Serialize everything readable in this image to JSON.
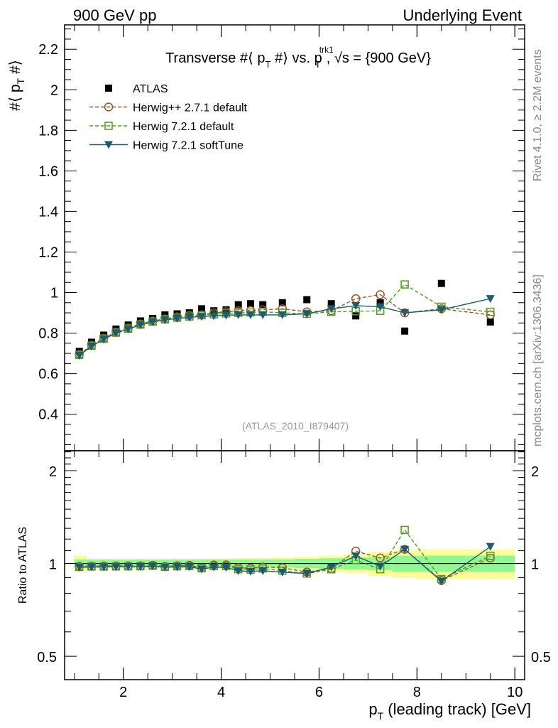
{
  "header": {
    "left": "900 GeV pp",
    "right": "Underlying Event"
  },
  "side": {
    "rivet": "Rivet 4.1.0, ≥ 2.2M events",
    "mcplots": "mcplots.cern.ch [arXiv:1306.3436]"
  },
  "colors": {
    "atlas": "#000000",
    "herwigpp": "#a0521e",
    "herwig721": "#4c9e1e",
    "softtune": "#1e5b73",
    "band_inner": "#90f890",
    "band_outer": "#fcfc98"
  },
  "chart_data": {
    "type": "line",
    "title": "Transverse #⟨ p_T #⟩ vs. p_T^trk1, √s = {900 GeV}",
    "title_parts": {
      "pre": "Transverse #⟨ p",
      "sub1": "T",
      "mid": " #⟩ vs. p",
      "sup": "trk1",
      "sub2": "T",
      "post": ", √s = {900 GeV}"
    },
    "ylabel": "#⟨ p_T #⟩",
    "ylabel_parts": {
      "pre": "#⟨ p",
      "sub": "T",
      "post": " #⟩"
    },
    "xlabel": "p_T (leading track) [GeV]",
    "xlabel_parts": {
      "pre": "p",
      "sub": "T",
      "post": " (leading track) [GeV]"
    },
    "ratio_ylabel": "Ratio to ATLAS",
    "watermark": "(ATLAS_2010_I879407)",
    "xlim": [
      0.8,
      10.2
    ],
    "ylim": [
      0.22,
      2.32
    ],
    "ratio_ylim": [
      0.42,
      2.32
    ],
    "xticks": [
      2,
      4,
      6,
      8,
      10
    ],
    "yticks": [
      0.4,
      0.6,
      0.8,
      1,
      1.2,
      1.4,
      1.6,
      1.8,
      2,
      2.2
    ],
    "ytick_labels": [
      "0.4",
      "0.6",
      "0.8",
      "1",
      "1.2",
      "1.4",
      "1.6",
      "1.8",
      "2",
      "2.2"
    ],
    "ratio_yticks": [
      0.5,
      1,
      2
    ],
    "ratio_ytick_labels": [
      "0.5",
      "1",
      "2"
    ],
    "x": [
      1.1,
      1.35,
      1.6,
      1.85,
      2.1,
      2.35,
      2.6,
      2.85,
      3.1,
      3.35,
      3.6,
      3.85,
      4.1,
      4.35,
      4.6,
      4.85,
      5.25,
      5.75,
      6.25,
      6.75,
      7.25,
      7.75,
      8.5,
      9.5
    ],
    "series": [
      {
        "name": "ATLAS",
        "marker": "filled-square",
        "values": [
          0.71,
          0.755,
          0.79,
          0.82,
          0.84,
          0.86,
          0.872,
          0.89,
          0.895,
          0.9,
          0.92,
          0.91,
          0.915,
          0.94,
          0.945,
          0.94,
          0.95,
          0.965,
          0.945,
          0.885,
          0.95,
          0.81,
          1.045,
          0.855
        ]
      },
      {
        "name": "Herwig++ 2.7.1 default",
        "marker": "open-circle",
        "values": [
          0.695,
          0.74,
          0.775,
          0.805,
          0.825,
          0.845,
          0.86,
          0.87,
          0.88,
          0.888,
          0.89,
          0.9,
          0.905,
          0.91,
          0.912,
          0.915,
          0.92,
          0.905,
          0.91,
          0.97,
          0.99,
          0.9,
          0.92,
          0.89
        ]
      },
      {
        "name": "Herwig 7.2.1 default",
        "marker": "open-square",
        "values": [
          0.692,
          0.738,
          0.772,
          0.802,
          0.822,
          0.842,
          0.857,
          0.868,
          0.876,
          0.882,
          0.888,
          0.892,
          0.897,
          0.9,
          0.902,
          0.905,
          0.9,
          0.895,
          0.905,
          0.908,
          0.91,
          1.04,
          0.93,
          0.905
        ]
      },
      {
        "name": "Herwig 7.2.1 softTune",
        "marker": "filled-triangle-down",
        "values": [
          0.69,
          0.735,
          0.77,
          0.8,
          0.82,
          0.84,
          0.855,
          0.865,
          0.872,
          0.878,
          0.882,
          0.885,
          0.888,
          0.89,
          0.89,
          0.89,
          0.89,
          0.895,
          0.92,
          0.935,
          0.93,
          0.9,
          0.915,
          0.97
        ]
      }
    ],
    "ratio_band": {
      "x_edges": [
        1.0,
        1.25,
        1.5,
        1.75,
        2.0,
        2.25,
        2.5,
        2.75,
        3.0,
        3.25,
        3.5,
        3.75,
        4.0,
        4.25,
        4.5,
        4.75,
        5.0,
        5.5,
        6.0,
        6.5,
        7.0,
        7.5,
        8.0,
        9.0,
        10.0
      ],
      "inner_half_width": [
        0.03,
        0.03,
        0.03,
        0.03,
        0.03,
        0.03,
        0.03,
        0.03,
        0.03,
        0.03,
        0.03,
        0.03,
        0.03,
        0.03,
        0.03,
        0.03,
        0.03,
        0.035,
        0.04,
        0.045,
        0.05,
        0.06,
        0.06,
        0.06
      ],
      "outer_half_width": [
        0.06,
        0.03,
        0.03,
        0.03,
        0.03,
        0.03,
        0.03,
        0.03,
        0.03,
        0.03,
        0.035,
        0.035,
        0.035,
        0.04,
        0.04,
        0.04,
        0.045,
        0.05,
        0.06,
        0.07,
        0.09,
        0.1,
        0.11,
        0.11
      ]
    }
  }
}
